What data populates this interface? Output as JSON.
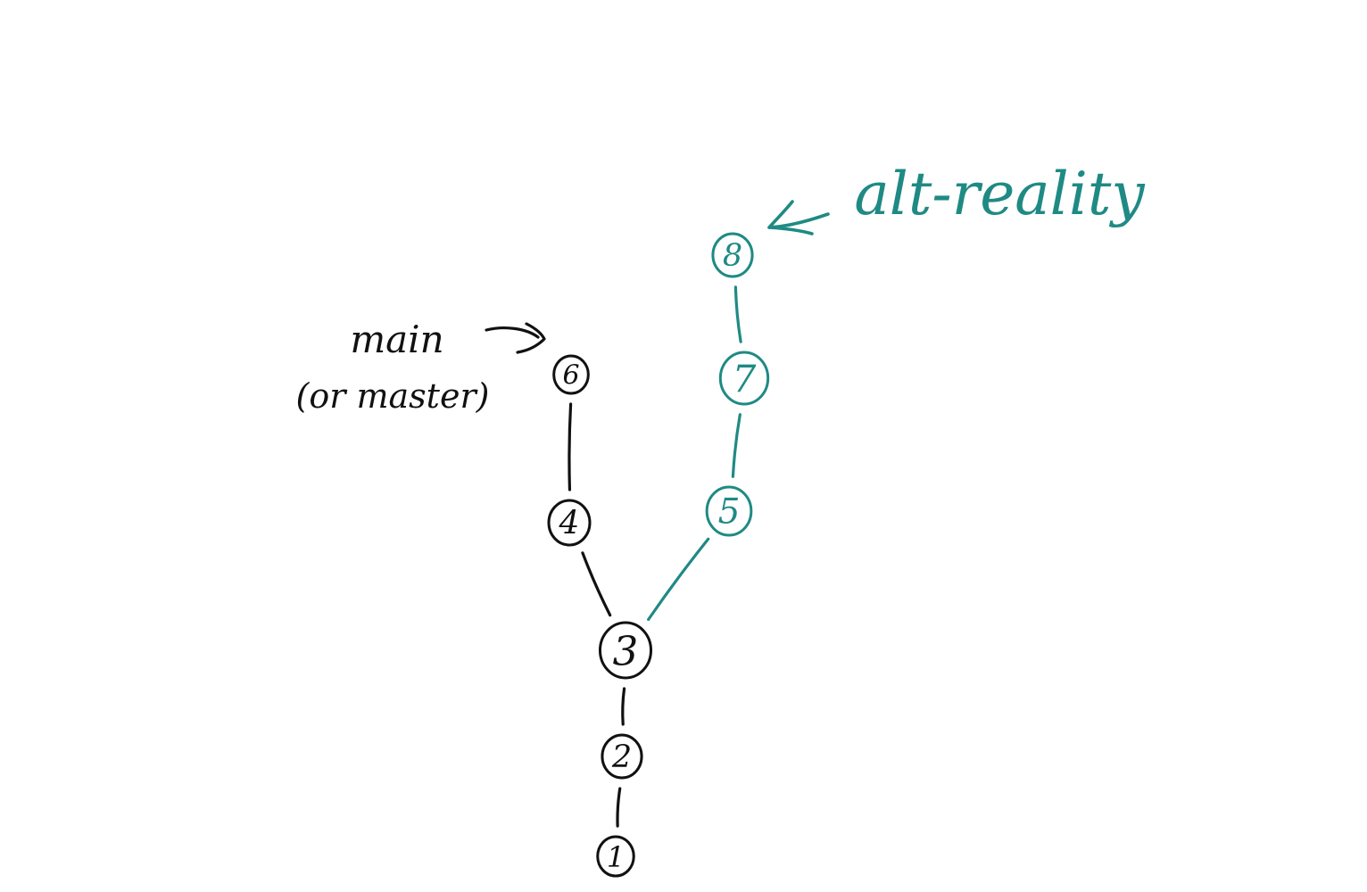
{
  "diagram": {
    "colors": {
      "main_branch": "#111111",
      "alt_branch": "#1f8a84",
      "background": "#ffffff"
    },
    "nodes": [
      {
        "id": "n1",
        "label": "1",
        "branch": "main"
      },
      {
        "id": "n2",
        "label": "2",
        "branch": "main"
      },
      {
        "id": "n3",
        "label": "3",
        "branch": "main"
      },
      {
        "id": "n4",
        "label": "4",
        "branch": "main"
      },
      {
        "id": "n6",
        "label": "6",
        "branch": "main"
      },
      {
        "id": "n5",
        "label": "5",
        "branch": "alt"
      },
      {
        "id": "n7",
        "label": "7",
        "branch": "alt"
      },
      {
        "id": "n8",
        "label": "8",
        "branch": "alt"
      }
    ],
    "edges": [
      {
        "from": "n1",
        "to": "n2",
        "branch": "main"
      },
      {
        "from": "n2",
        "to": "n3",
        "branch": "main"
      },
      {
        "from": "n3",
        "to": "n4",
        "branch": "main"
      },
      {
        "from": "n4",
        "to": "n6",
        "branch": "main"
      },
      {
        "from": "n3",
        "to": "n5",
        "branch": "alt"
      },
      {
        "from": "n5",
        "to": "n7",
        "branch": "alt"
      },
      {
        "from": "n7",
        "to": "n8",
        "branch": "alt"
      }
    ],
    "labels": {
      "main_line1": "main",
      "main_line2": "(or master)",
      "alt": "alt-reality"
    }
  }
}
